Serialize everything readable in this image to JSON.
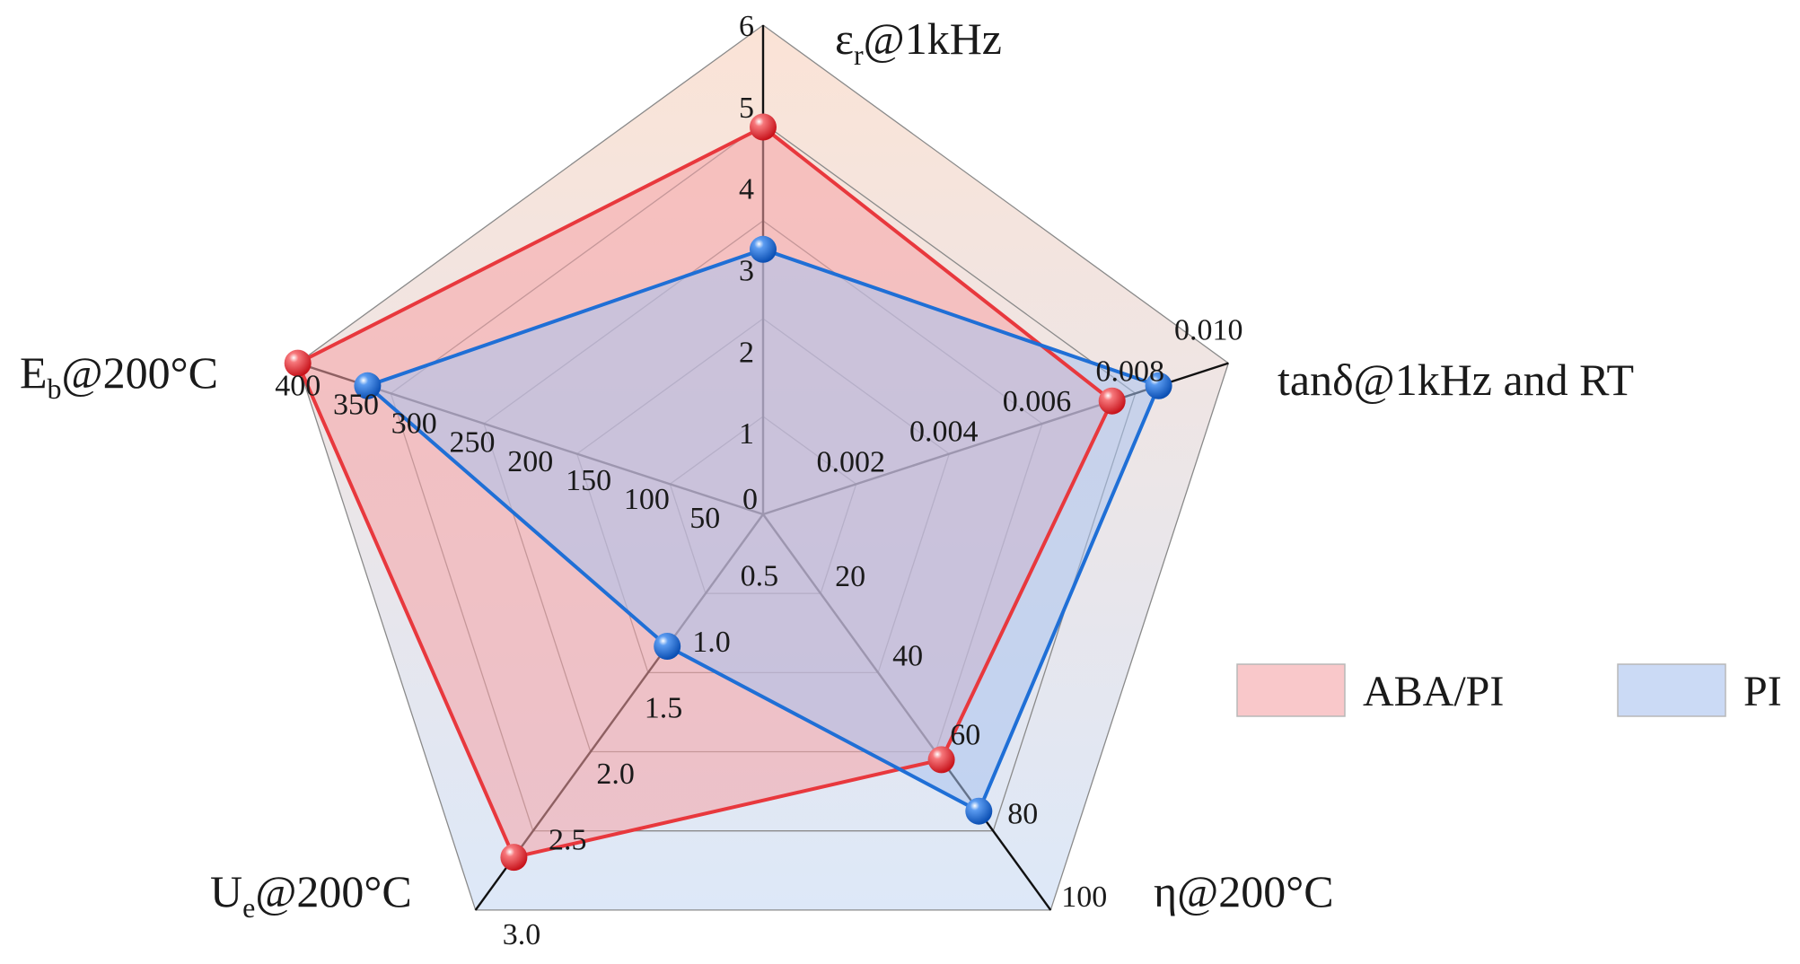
{
  "chart_data": {
    "type": "radar",
    "axes": [
      {
        "key": "er",
        "label": "εr@1kHz",
        "label_main": "ε",
        "label_sub": "r",
        "label_tail": "@1kHz",
        "min": 0,
        "max": 6,
        "ticks": [
          "0",
          "1",
          "2",
          "3",
          "4",
          "5",
          "6"
        ]
      },
      {
        "key": "tan",
        "label": "tanδ@1kHz and RT",
        "label_main": "tanδ@1kHz and RT",
        "label_sub": "",
        "label_tail": "",
        "min": 0,
        "max": 0.01,
        "ticks": [
          "",
          "0.002",
          "0.004",
          "0.006",
          "0.008",
          "0.010"
        ]
      },
      {
        "key": "eta",
        "label": "η@200°C",
        "label_main": "η@200°C",
        "label_sub": "",
        "label_tail": "",
        "min": 0,
        "max": 100,
        "ticks": [
          "",
          "20",
          "40",
          "60",
          "80",
          "100"
        ]
      },
      {
        "key": "ue",
        "label": "Ue@200°C",
        "label_main": "U",
        "label_sub": "e",
        "label_tail": "@200°C",
        "min": 0,
        "max": 3.0,
        "ticks": [
          "",
          "0.5",
          "1.0",
          "1.5",
          "2.0",
          "2.5",
          "3.0"
        ]
      },
      {
        "key": "eb",
        "label": "Eb@200°C",
        "label_main": "E",
        "label_sub": "b",
        "label_tail": "@200°C",
        "min": 0,
        "max": 400,
        "ticks": [
          "",
          "50",
          "100",
          "150",
          "200",
          "250",
          "300",
          "350",
          "400"
        ]
      }
    ],
    "series": [
      {
        "name": "ABA/PI",
        "color": "#e8383d",
        "fill": "#f5a3a6",
        "values": [
          4.75,
          0.0075,
          62,
          2.6,
          400
        ]
      },
      {
        "name": "PI",
        "color": "#1f6fd6",
        "fill": "#a9c2ee",
        "values": [
          3.25,
          0.0085,
          75,
          1.0,
          340
        ]
      }
    ],
    "legend": {
      "position": "right"
    },
    "background_gradient": {
      "top": "#fbe3d6",
      "bottom": "#dde8f8"
    }
  }
}
